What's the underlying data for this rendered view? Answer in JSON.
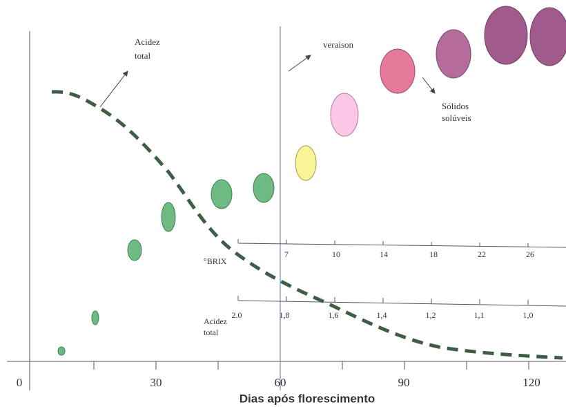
{
  "x_axis": {
    "title": "Dias após florescimento",
    "ticks": [
      "0",
      "30",
      "60",
      "90",
      "120"
    ]
  },
  "brix_scale": {
    "label": "°BRIX",
    "ticks": [
      "7",
      "10",
      "14",
      "18",
      "22",
      "26"
    ]
  },
  "acidity_scale": {
    "label": [
      "Acidez",
      "total"
    ],
    "ticks": [
      "2.0",
      "1,8",
      "1,6",
      "1,4",
      "1,2",
      "1,1",
      "1,0"
    ]
  },
  "annotations": {
    "acidity": [
      "Acidez",
      "total"
    ],
    "veraison": "veraison",
    "soluble_solids": [
      "Sólidos",
      "solúveis"
    ]
  }
}
